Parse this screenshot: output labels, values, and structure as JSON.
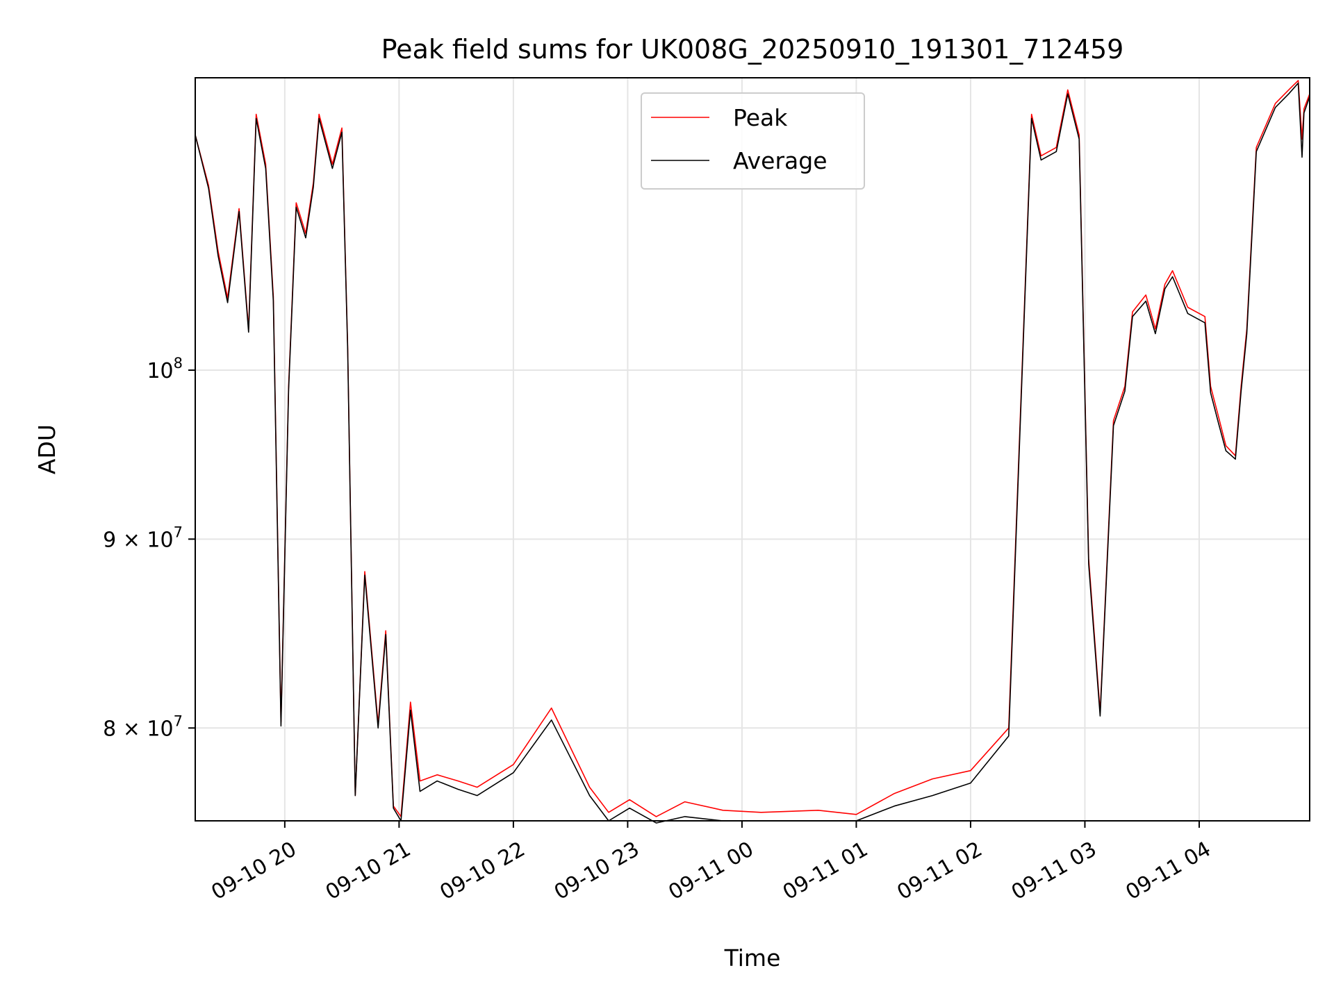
{
  "chart_data": {
    "type": "line",
    "title": "Peak field sums for UK008G_20250910_191301_712459",
    "xlabel": "Time",
    "ylabel": "ADU",
    "y_scale": "log",
    "grid": true,
    "legend_placement": "top-center",
    "xlim": [
      "2025-09-10 19:13",
      "2025-09-11 04:58"
    ],
    "ylim": [
      75500000,
      120000000
    ],
    "x_ticks": [
      {
        "value": "2025-09-10 20:00",
        "label": "09-10 20"
      },
      {
        "value": "2025-09-10 21:00",
        "label": "09-10 21"
      },
      {
        "value": "2025-09-10 22:00",
        "label": "09-10 22"
      },
      {
        "value": "2025-09-10 23:00",
        "label": "09-10 23"
      },
      {
        "value": "2025-09-11 00:00",
        "label": "09-11 00"
      },
      {
        "value": "2025-09-11 01:00",
        "label": "09-11 01"
      },
      {
        "value": "2025-09-11 02:00",
        "label": "09-11 02"
      },
      {
        "value": "2025-09-11 03:00",
        "label": "09-11 03"
      },
      {
        "value": "2025-09-11 04:00",
        "label": "09-11 04"
      }
    ],
    "y_ticks": [
      {
        "value": 80000000,
        "label_base": "8 × 10",
        "label_exp": "7"
      },
      {
        "value": 90000000,
        "label_base": "9 × 10",
        "label_exp": "7"
      },
      {
        "value": 100000000,
        "label_base": "10",
        "label_exp": "8"
      }
    ],
    "x": [
      "2025-09-10 19:13",
      "2025-09-10 19:20",
      "2025-09-10 19:25",
      "2025-09-10 19:30",
      "2025-09-10 19:36",
      "2025-09-10 19:41",
      "2025-09-10 19:45",
      "2025-09-10 19:50",
      "2025-09-10 19:54",
      "2025-09-10 19:58",
      "2025-09-10 20:02",
      "2025-09-10 20:06",
      "2025-09-10 20:11",
      "2025-09-10 20:15",
      "2025-09-10 20:18",
      "2025-09-10 20:25",
      "2025-09-10 20:30",
      "2025-09-10 20:33",
      "2025-09-10 20:37",
      "2025-09-10 20:42",
      "2025-09-10 20:49",
      "2025-09-10 20:53",
      "2025-09-10 20:57",
      "2025-09-10 21:01",
      "2025-09-10 21:06",
      "2025-09-10 21:11",
      "2025-09-10 21:20",
      "2025-09-10 21:31",
      "2025-09-10 21:41",
      "2025-09-10 22:00",
      "2025-09-10 22:20",
      "2025-09-10 22:40",
      "2025-09-10 22:50",
      "2025-09-10 23:01",
      "2025-09-10 23:15",
      "2025-09-10 23:30",
      "2025-09-10 23:50",
      "2025-09-11 00:10",
      "2025-09-11 00:40",
      "2025-09-11 01:00",
      "2025-09-11 01:20",
      "2025-09-11 01:40",
      "2025-09-11 02:00",
      "2025-09-11 02:20",
      "2025-09-11 02:32",
      "2025-09-11 02:37",
      "2025-09-11 02:45",
      "2025-09-11 02:51",
      "2025-09-11 02:57",
      "2025-09-11 03:02",
      "2025-09-11 03:08",
      "2025-09-11 03:15",
      "2025-09-11 03:21",
      "2025-09-11 03:25",
      "2025-09-11 03:32",
      "2025-09-11 03:37",
      "2025-09-11 03:42",
      "2025-09-11 03:46",
      "2025-09-11 03:54",
      "2025-09-11 04:03",
      "2025-09-11 04:06",
      "2025-09-11 04:10",
      "2025-09-11 04:14",
      "2025-09-11 04:19",
      "2025-09-11 04:22",
      "2025-09-11 04:25",
      "2025-09-11 04:30",
      "2025-09-11 04:40",
      "2025-09-11 04:47",
      "2025-09-11 04:52",
      "2025-09-11 04:54",
      "2025-09-11 04:55",
      "2025-09-11 04:58"
    ],
    "series": [
      {
        "name": "Peak",
        "color": "#ff0000",
        "values": [
          115800000,
          112200000,
          107700000,
          104600000,
          110600000,
          102600000,
          117300000,
          113700000,
          104700000,
          80300000,
          99000000,
          111000000,
          108900000,
          112400000,
          117300000,
          113700000,
          116300000,
          101500000,
          76700000,
          88200000,
          80200000,
          85000000,
          76200000,
          75700000,
          81300000,
          77400000,
          77700000,
          77400000,
          77100000,
          78200000,
          81000000,
          77100000,
          75900000,
          76500000,
          75700000,
          76400000,
          76000000,
          75900000,
          76000000,
          75800000,
          76800000,
          77500000,
          77900000,
          80000000,
          117300000,
          114300000,
          114900000,
          119100000,
          115800000,
          88900000,
          80800000,
          96900000,
          99000000,
          103700000,
          104800000,
          102600000,
          105500000,
          106400000,
          104000000,
          103400000,
          99000000,
          97200000,
          95400000,
          94800000,
          99000000,
          102600000,
          114900000,
          118100000,
          119100000,
          119800000,
          115500000,
          117700000,
          118800000
        ]
      },
      {
        "name": "Average",
        "color": "#000000",
        "values": [
          115800000,
          112000000,
          107400000,
          104300000,
          110400000,
          102400000,
          117000000,
          113400000,
          104400000,
          80100000,
          98800000,
          110700000,
          108600000,
          112100000,
          117000000,
          113400000,
          116000000,
          101300000,
          76700000,
          88000000,
          80000000,
          84800000,
          76100000,
          75500000,
          80900000,
          76900000,
          77400000,
          77000000,
          76700000,
          77800000,
          80400000,
          76700000,
          75500000,
          76100000,
          75400000,
          75700000,
          75500000,
          75500000,
          75500000,
          75500000,
          76200000,
          76700000,
          77300000,
          79600000,
          117000000,
          114000000,
          114600000,
          118800000,
          115500000,
          88600000,
          80600000,
          96600000,
          98700000,
          103400000,
          104400000,
          102300000,
          105200000,
          106000000,
          103600000,
          103000000,
          98600000,
          96800000,
          95100000,
          94600000,
          98700000,
          102300000,
          114600000,
          117800000,
          118800000,
          119600000,
          114200000,
          117400000,
          118600000
        ]
      }
    ]
  }
}
